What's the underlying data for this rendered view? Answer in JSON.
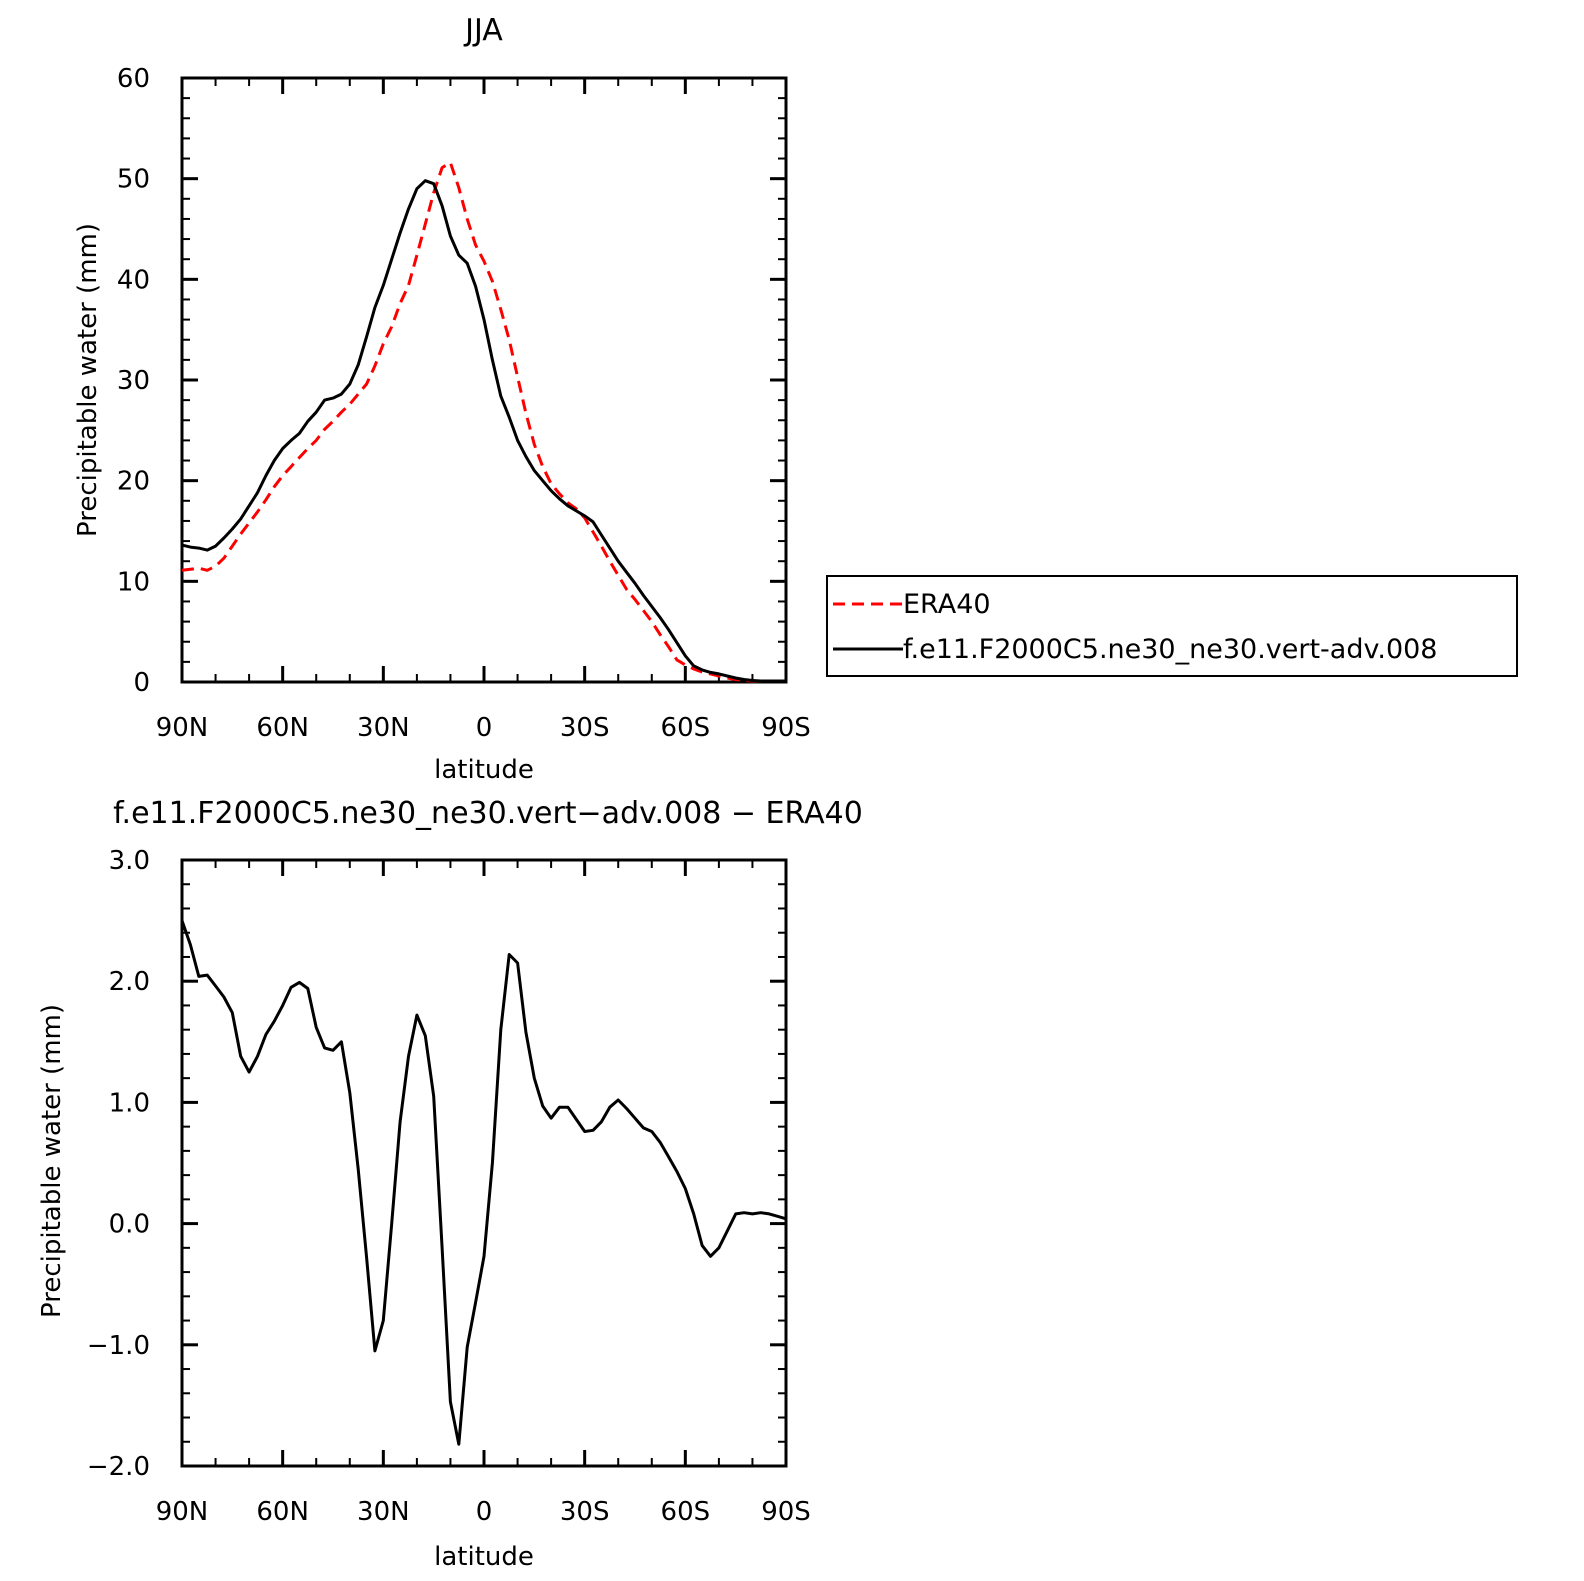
{
  "chart_data": [
    {
      "type": "line",
      "title": "JJA",
      "xlabel": "latitude",
      "ylabel": "Precipitable water (mm)",
      "xlim": [
        90,
        -90
      ],
      "ylim": [
        0,
        60
      ],
      "x_ticks": [
        90,
        60,
        30,
        0,
        -30,
        -60,
        -90
      ],
      "x_tick_labels": [
        "90N",
        "60N",
        "30N",
        "0",
        "30S",
        "60S",
        "90S"
      ],
      "y_ticks": [
        0,
        10,
        20,
        30,
        40,
        50,
        60
      ],
      "y_tick_labels": [
        "0",
        "10",
        "20",
        "30",
        "40",
        "50",
        "60"
      ],
      "grid": false,
      "legend_position": "right",
      "series": [
        {
          "name": "ERA40",
          "color": "#ff0000",
          "dash": "dashed",
          "x": [
            90,
            87.5,
            85,
            82.5,
            80,
            77.5,
            75,
            72.5,
            70,
            67.5,
            65,
            62.5,
            60,
            57.5,
            55,
            52.5,
            50,
            47.5,
            45,
            42.5,
            40,
            37.5,
            35,
            32.5,
            30,
            27.5,
            25,
            22.5,
            20,
            17.5,
            15,
            12.5,
            10,
            7.5,
            5,
            2.5,
            0,
            -2.5,
            -5,
            -7.5,
            -10,
            -12.5,
            -15,
            -17.5,
            -20,
            -22.5,
            -25,
            -27.5,
            -30,
            -32.5,
            -35,
            -37.5,
            -40,
            -42.5,
            -45,
            -47.5,
            -50,
            -52.5,
            -55,
            -57.5,
            -60,
            -62.5,
            -65,
            -67.5,
            -70,
            -72.5,
            -75,
            -77.5,
            -80,
            -82.5,
            -85,
            -87.5,
            -90
          ],
          "values": [
            11.1,
            11.2,
            11.3,
            11.1,
            11.5,
            12.3,
            13.5,
            14.7,
            15.8,
            16.9,
            18.1,
            19.4,
            20.5,
            21.4,
            22.3,
            23.2,
            24.0,
            25.1,
            25.9,
            26.8,
            27.6,
            28.6,
            29.6,
            31.4,
            33.6,
            35.3,
            37.6,
            39.4,
            42.4,
            45.5,
            48.6,
            51.1,
            51.6,
            49.1,
            46.0,
            43.4,
            41.8,
            39.8,
            37.0,
            34.0,
            30.3,
            26.7,
            23.6,
            21.4,
            19.7,
            18.7,
            17.8,
            17.2,
            16.3,
            14.9,
            13.5,
            12.0,
            10.6,
            9.2,
            8.2,
            7.1,
            6.0,
            4.7,
            3.5,
            2.2,
            1.7,
            1.3,
            1.0,
            0.8,
            0.6,
            0.4,
            0.25,
            0.15,
            0.1,
            0.1,
            0.1,
            0.1,
            0.1
          ]
        },
        {
          "name": "f.e11.F2000C5.ne30_ne30.vert-adv.008",
          "color": "#000000",
          "dash": "solid",
          "x": [
            90,
            87.5,
            85,
            82.5,
            80,
            77.5,
            75,
            72.5,
            70,
            67.5,
            65,
            62.5,
            60,
            57.5,
            55,
            52.5,
            50,
            47.5,
            45,
            42.5,
            40,
            37.5,
            35,
            32.5,
            30,
            27.5,
            25,
            22.5,
            20,
            17.5,
            15,
            12.5,
            10,
            7.5,
            5,
            2.5,
            0,
            -2.5,
            -5,
            -7.5,
            -10,
            -12.5,
            -15,
            -17.5,
            -20,
            -22.5,
            -25,
            -27.5,
            -30,
            -32.5,
            -35,
            -37.5,
            -40,
            -42.5,
            -45,
            -47.5,
            -50,
            -52.5,
            -55,
            -57.5,
            -60,
            -62.5,
            -65,
            -67.5,
            -70,
            -72.5,
            -75,
            -77.5,
            -80,
            -82.5,
            -85,
            -87.5,
            -90
          ],
          "values": [
            13.6,
            13.4,
            13.3,
            13.1,
            13.5,
            14.3,
            15.2,
            16.2,
            17.5,
            18.8,
            20.5,
            22.0,
            23.2,
            24.0,
            24.7,
            25.9,
            26.8,
            28.0,
            28.2,
            28.6,
            29.6,
            31.5,
            34.3,
            37.2,
            39.4,
            42.0,
            44.6,
            47.0,
            49.0,
            49.8,
            49.5,
            47.3,
            44.3,
            42.4,
            41.6,
            39.3,
            36.0,
            32.0,
            28.4,
            26.3,
            24.0,
            22.4,
            21.0,
            20.0,
            19.0,
            18.2,
            17.5,
            17.0,
            16.5,
            15.9,
            14.6,
            13.3,
            12.0,
            10.9,
            9.8,
            8.6,
            7.5,
            6.4,
            5.2,
            3.9,
            2.6,
            1.6,
            1.2,
            0.95,
            0.8,
            0.6,
            0.4,
            0.25,
            0.15,
            0.1,
            0.1,
            0.1,
            0.1
          ]
        }
      ]
    },
    {
      "type": "line",
      "title": "f.e11.F2000C5.ne30_ne30.vert−adv.008 − ERA40",
      "xlabel": "latitude",
      "ylabel": "Precipitable water (mm)",
      "xlim": [
        90,
        -90
      ],
      "ylim": [
        -2.0,
        3.0
      ],
      "x_ticks": [
        90,
        60,
        30,
        0,
        -30,
        -60,
        -90
      ],
      "x_tick_labels": [
        "90N",
        "60N",
        "30N",
        "0",
        "30S",
        "60S",
        "90S"
      ],
      "y_ticks": [
        -2.0,
        -1.0,
        0.0,
        1.0,
        2.0,
        3.0
      ],
      "y_tick_labels": [
        "−2.0",
        "−1.0",
        "0.0",
        "1.0",
        "2.0",
        "3.0"
      ],
      "grid": false,
      "series": [
        {
          "color": "#000000",
          "dash": "solid",
          "x": [
            90,
            87.5,
            85,
            82.5,
            80,
            77.5,
            75,
            72.5,
            70,
            67.5,
            65,
            62.5,
            60,
            57.5,
            55,
            52.5,
            50,
            47.5,
            45,
            42.5,
            40,
            37.5,
            35,
            32.5,
            30,
            27.5,
            25,
            22.5,
            20,
            17.5,
            15,
            12.5,
            10,
            7.5,
            5,
            2.5,
            0,
            -2.5,
            -5,
            -7.5,
            -10,
            -12.5,
            -15,
            -17.5,
            -20,
            -22.5,
            -25,
            -27.5,
            -30,
            -32.5,
            -35,
            -37.5,
            -40,
            -42.5,
            -45,
            -47.5,
            -50,
            -52.5,
            -55,
            -57.5,
            -60,
            -62.5,
            -65,
            -67.5,
            -70,
            -72.5,
            -75,
            -77.5,
            -80,
            -82.5,
            -85,
            -87.5,
            -90
          ],
          "values": [
            2.5,
            2.3,
            2.04,
            2.05,
            1.96,
            1.87,
            1.74,
            1.38,
            1.25,
            1.38,
            1.56,
            1.67,
            1.8,
            1.95,
            1.99,
            1.94,
            1.62,
            1.45,
            1.43,
            1.5,
            1.08,
            0.45,
            -0.28,
            -1.05,
            -0.8,
            0.0,
            0.84,
            1.38,
            1.72,
            1.55,
            1.05,
            -0.2,
            -1.47,
            -1.82,
            -1.02,
            -0.65,
            -0.27,
            0.5,
            1.6,
            2.22,
            2.15,
            1.58,
            1.2,
            0.97,
            0.87,
            0.96,
            0.96,
            0.86,
            0.76,
            0.77,
            0.84,
            0.96,
            1.02,
            0.95,
            0.87,
            0.79,
            0.76,
            0.67,
            0.55,
            0.43,
            0.29,
            0.08,
            -0.18,
            -0.27,
            -0.2,
            -0.06,
            0.08,
            0.09,
            0.08,
            0.09,
            0.08,
            0.06,
            0.04
          ]
        }
      ]
    }
  ]
}
